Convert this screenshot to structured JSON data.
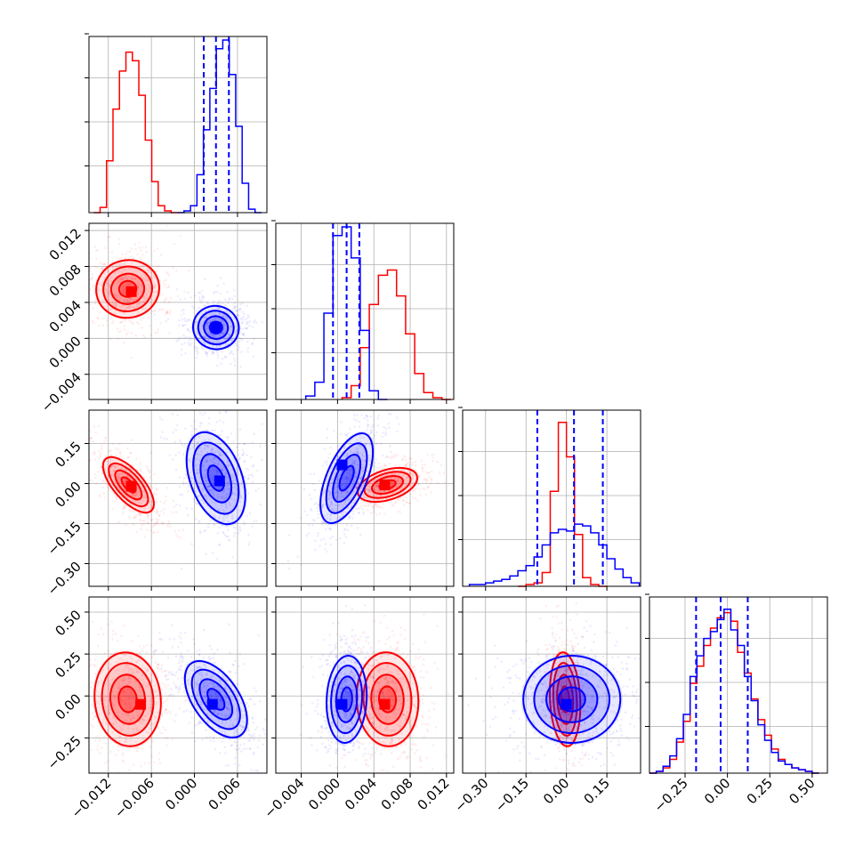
{
  "chart_data": {
    "type": "corner",
    "series": [
      {
        "name": "",
        "color": "#ff0000"
      },
      {
        "name": "",
        "color": "#0000ff"
      }
    ],
    "parameters": [
      {
        "range": [
          -0.0147,
          0.0101
        ],
        "ticks": [
          -0.012,
          -0.006,
          0.0,
          0.006
        ],
        "tick_labels": [
          "−0.012",
          "−0.006",
          "0.000",
          "0.006"
        ]
      },
      {
        "range": [
          -0.0068,
          0.0128
        ],
        "ticks": [
          -0.004,
          0.0,
          0.004,
          0.008,
          0.012
        ],
        "tick_labels": [
          "−0.004",
          "0.000",
          "0.004",
          "0.008",
          "0.012"
        ]
      },
      {
        "range": [
          -0.385,
          0.275
        ],
        "ticks": [
          -0.3,
          -0.15,
          0.0,
          0.15
        ],
        "tick_labels": [
          "−0.30",
          "−0.15",
          "0.00",
          "0.15"
        ]
      },
      {
        "range": [
          -0.46,
          0.59
        ],
        "ticks": [
          -0.25,
          0.0,
          0.25,
          0.5
        ],
        "tick_labels": [
          "−0.25",
          "0.00",
          "0.25",
          "0.50"
        ]
      }
    ],
    "histograms": [
      {
        "red": {
          "x": [
            -0.0136,
            -0.0127,
            -0.0118,
            -0.0109,
            -0.01,
            -0.0091,
            -0.0082,
            -0.0073,
            -0.0064,
            -0.0055,
            -0.0046,
            -0.0037,
            -0.0028
          ],
          "y": [
            0.0,
            0.03,
            0.3,
            0.6,
            0.82,
            0.93,
            0.88,
            0.68,
            0.42,
            0.18,
            0.04,
            0.01,
            0.0
          ]
        },
        "blue": {
          "x": [
            -0.0019,
            -0.001,
            -0.0001,
            0.0008,
            0.0017,
            0.0026,
            0.0035,
            0.0044,
            0.0053,
            0.0062,
            0.0071,
            0.008,
            0.0089
          ],
          "y": [
            0.0,
            0.01,
            0.04,
            0.22,
            0.48,
            0.72,
            0.95,
            1.0,
            0.8,
            0.5,
            0.17,
            0.02,
            0.0
          ]
        },
        "quantiles_blue": [
          0.0013,
          0.003,
          0.0048
        ]
      },
      {
        "red": {
          "x": [
            0.001,
            0.002,
            0.003,
            0.004,
            0.005,
            0.006,
            0.007,
            0.008,
            0.009,
            0.01,
            0.011,
            0.012
          ],
          "y": [
            0.01,
            0.08,
            0.3,
            0.55,
            0.72,
            0.75,
            0.6,
            0.38,
            0.15,
            0.04,
            0.01,
            0.0
          ]
        },
        "blue": {
          "x": [
            -0.003,
            -0.002,
            -0.001,
            0.0,
            0.001,
            0.002,
            0.003,
            0.004,
            0.005
          ],
          "y": [
            0.02,
            0.1,
            0.5,
            0.95,
            1.0,
            0.82,
            0.4,
            0.05,
            0.0
          ]
        },
        "quantiles_blue": [
          -0.0005,
          0.001,
          0.0024
        ]
      },
      {
        "red": {
          "x": [
            -0.165,
            -0.135,
            -0.105,
            -0.075,
            -0.045,
            -0.015,
            0.015,
            0.045,
            0.075,
            0.105,
            0.135
          ],
          "y": [
            0.0,
            0.01,
            0.02,
            0.08,
            0.55,
            0.95,
            0.75,
            0.3,
            0.05,
            0.01,
            0.0
          ]
        },
        "blue": {
          "x": [
            -0.345,
            -0.315,
            -0.285,
            -0.255,
            -0.225,
            -0.195,
            -0.165,
            -0.135,
            -0.105,
            -0.075,
            -0.045,
            -0.015,
            0.015,
            0.045,
            0.075,
            0.105,
            0.135,
            0.165,
            0.195,
            0.225,
            0.255
          ],
          "y": [
            0.01,
            0.01,
            0.02,
            0.03,
            0.04,
            0.06,
            0.09,
            0.12,
            0.17,
            0.24,
            0.31,
            0.33,
            0.32,
            0.36,
            0.35,
            0.31,
            0.24,
            0.16,
            0.1,
            0.05,
            0.02
          ]
        },
        "quantiles_blue": [
          -0.108,
          0.028,
          0.135
        ]
      },
      {
        "red": {
          "x": [
            -0.44,
            -0.4,
            -0.36,
            -0.32,
            -0.28,
            -0.24,
            -0.2,
            -0.16,
            -0.12,
            -0.08,
            -0.04,
            0.0,
            0.04,
            0.08,
            0.12,
            0.16,
            0.2,
            0.24,
            0.28,
            0.32,
            0.36,
            0.4,
            0.44,
            0.48,
            0.52
          ],
          "y": [
            0.0,
            0.01,
            0.03,
            0.08,
            0.18,
            0.3,
            0.52,
            0.62,
            0.74,
            0.84,
            0.9,
            0.93,
            0.88,
            0.7,
            0.58,
            0.43,
            0.31,
            0.22,
            0.14,
            0.08,
            0.05,
            0.03,
            0.02,
            0.01,
            0.0
          ]
        },
        "blue": {
          "x": [
            -0.44,
            -0.4,
            -0.36,
            -0.32,
            -0.28,
            -0.24,
            -0.2,
            -0.16,
            -0.12,
            -0.08,
            -0.04,
            0.0,
            0.04,
            0.08,
            0.12,
            0.16,
            0.2,
            0.24,
            0.28,
            0.32,
            0.36,
            0.4,
            0.44,
            0.48,
            0.52
          ],
          "y": [
            0.0,
            0.01,
            0.04,
            0.1,
            0.2,
            0.34,
            0.56,
            0.68,
            0.78,
            0.82,
            0.89,
            0.95,
            0.83,
            0.74,
            0.56,
            0.42,
            0.28,
            0.19,
            0.12,
            0.07,
            0.05,
            0.03,
            0.02,
            0.01,
            0.0
          ]
        },
        "quantiles_blue": [
          -0.185,
          -0.04,
          0.12
        ]
      }
    ],
    "scatter_2d": [
      {
        "x_param": 0,
        "y_param": 1,
        "red": {
          "cx": -0.0093,
          "cy": 0.0055,
          "sx": 0.0022,
          "sy": 0.0016,
          "rot": 0.2
        },
        "blue": {
          "cx": 0.003,
          "cy": 0.0012,
          "sx": 0.0016,
          "sy": 0.0012,
          "rot": -0.25
        },
        "red_core": [
          -0.0088,
          0.0052
        ],
        "blue_core": [
          0.003,
          0.0012
        ]
      },
      {
        "x_param": 0,
        "y_param": 2,
        "red": {
          "cx": -0.0092,
          "cy": -0.005,
          "sx": 0.0024,
          "sy": 0.028,
          "rot": -0.85
        },
        "blue": {
          "cx": 0.003,
          "cy": 0.02,
          "sx": 0.0018,
          "sy": 0.09,
          "rot": 0.35
        },
        "red_core": [
          -0.0088,
          -0.01
        ],
        "blue_core": [
          0.0035,
          0.01
        ]
      },
      {
        "x_param": 0,
        "y_param": 3,
        "red": {
          "cx": -0.0093,
          "cy": -0.02,
          "sx": 0.0023,
          "sy": 0.14,
          "rot": 0.1
        },
        "blue": {
          "cx": 0.003,
          "cy": -0.02,
          "sx": 0.0016,
          "sy": 0.13,
          "rot": 0.6
        },
        "red_core": [
          -0.0075,
          -0.05
        ],
        "blue_core": [
          0.0025,
          -0.05
        ]
      },
      {
        "x_param": 1,
        "y_param": 2,
        "red": {
          "cx": 0.0055,
          "cy": -0.005,
          "sx": 0.0017,
          "sy": 0.028,
          "rot": 0.3
        },
        "blue": {
          "cx": 0.001,
          "cy": 0.02,
          "sx": 0.0011,
          "sy": 0.09,
          "rot": -0.4
        },
        "red_core": [
          0.0052,
          -0.005
        ],
        "blue_core": [
          0.0005,
          0.07
        ]
      },
      {
        "x_param": 1,
        "y_param": 3,
        "red": {
          "cx": 0.0055,
          "cy": -0.02,
          "sx": 0.0017,
          "sy": 0.14,
          "rot": 0.05
        },
        "blue": {
          "cx": 0.001,
          "cy": -0.02,
          "sx": 0.0011,
          "sy": 0.13,
          "rot": -0.05
        },
        "red_core": [
          0.0052,
          -0.05
        ],
        "blue_core": [
          0.0005,
          -0.05
        ]
      },
      {
        "x_param": 2,
        "y_param": 3,
        "red": {
          "cx": -0.005,
          "cy": -0.02,
          "sx": 0.028,
          "sy": 0.14,
          "rot": 0.05
        },
        "blue": {
          "cx": 0.02,
          "cy": -0.02,
          "sx": 0.09,
          "sy": 0.13,
          "rot": 0.0
        },
        "red_core": [
          -0.005,
          -0.05
        ],
        "blue_core": [
          0.0,
          -0.05
        ]
      }
    ]
  }
}
